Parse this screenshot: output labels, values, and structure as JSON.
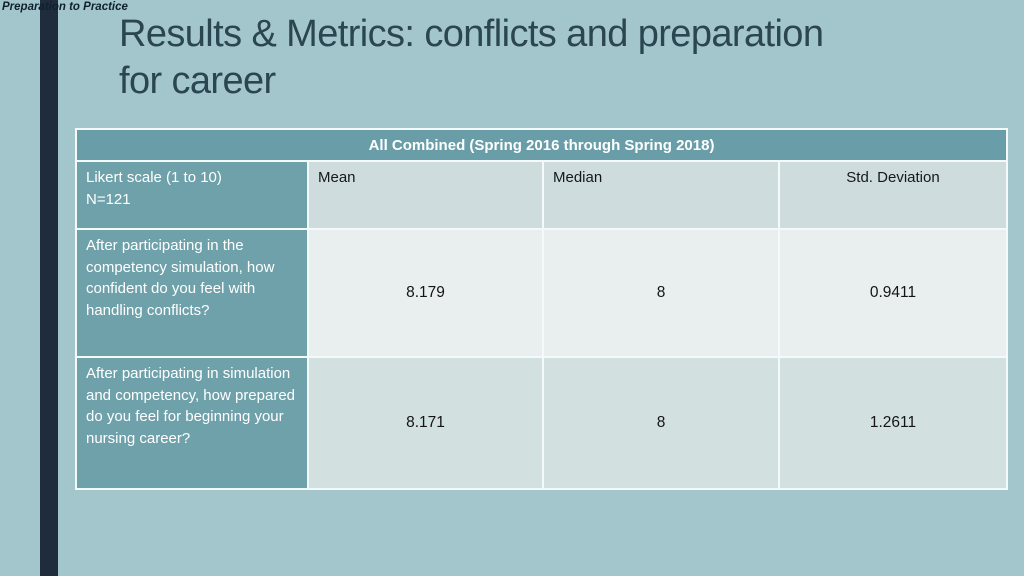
{
  "slide": {
    "header_note": "Preparation to Practice",
    "title": {
      "line1": "Results & Metrics: conflicts and preparation",
      "line2": "for career"
    }
  },
  "table": {
    "banner": "All Combined (Spring 2016 through Spring 2018)",
    "row_header": {
      "line1": "Likert scale (1 to 10)",
      "line2": "N=121"
    },
    "columns": [
      "Mean",
      "Median",
      "Std. Deviation"
    ],
    "rows": [
      {
        "question": "After participating in the competency simulation, how confident do you feel with handling conflicts?",
        "mean": "8.179",
        "median": "8",
        "std_dev": "0.9411"
      },
      {
        "question": "After participating in simulation and competency, how prepared do you feel for beginning your nursing career?",
        "mean": "8.171",
        "median": "8",
        "std_dev": "1.2611"
      }
    ]
  },
  "colors": {
    "background": "#a3c6cc",
    "accent_bar": "#1e2c3c",
    "title_text": "#2b4650",
    "table_teal": "#6fa1ab",
    "banner_teal": "#699ea9",
    "header_row_tint": "#cedcdd",
    "row1_tint": "#e9efee",
    "row2_tint": "#d3e0e0",
    "border": "#f4f9f9"
  }
}
